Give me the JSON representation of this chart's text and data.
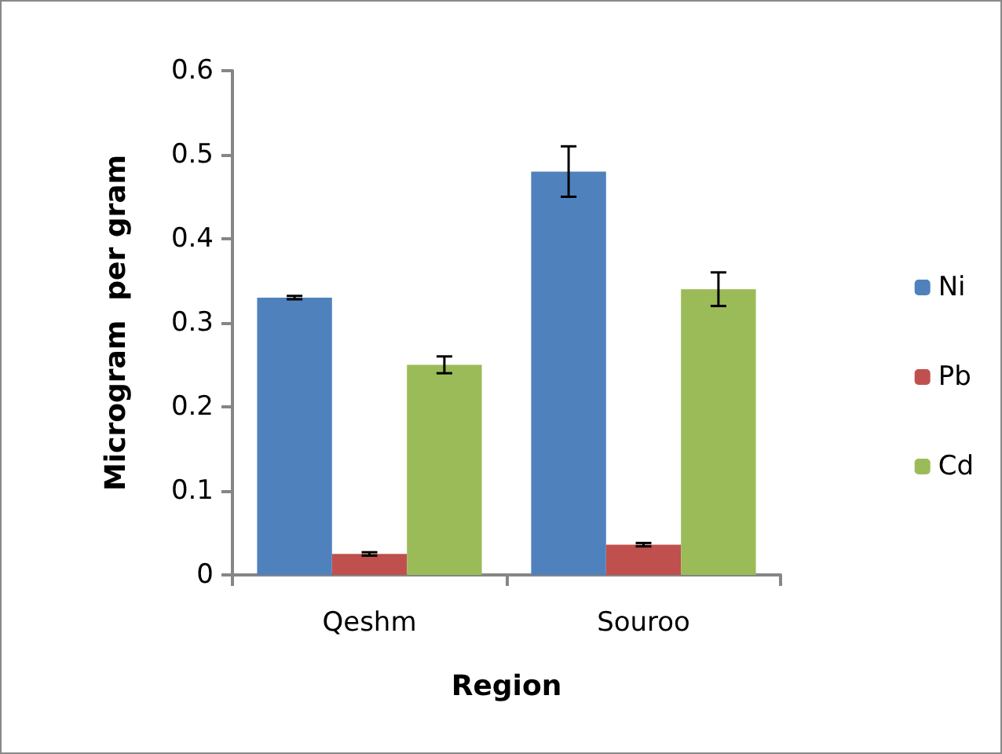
{
  "chart_data": {
    "type": "bar",
    "xlabel": "Region",
    "ylabel": "Microgram  per gram",
    "categories": [
      "Qeshm",
      "Souroo"
    ],
    "series": [
      {
        "name": "Ni",
        "color": "#4f81bd",
        "values": [
          0.33,
          0.48
        ],
        "errors": [
          0.002,
          0.03
        ]
      },
      {
        "name": "Pb",
        "color": "#c0504d",
        "values": [
          0.025,
          0.036
        ],
        "errors": [
          0.002,
          0.002
        ]
      },
      {
        "name": "Cd",
        "color": "#9bbb59",
        "values": [
          0.25,
          0.34
        ],
        "errors": [
          0.01,
          0.02
        ]
      }
    ],
    "ylim": [
      0,
      0.6
    ],
    "yticks": [
      0,
      0.1,
      0.2,
      0.3,
      0.4,
      0.5,
      0.6
    ],
    "grid": false,
    "legend": "right"
  }
}
